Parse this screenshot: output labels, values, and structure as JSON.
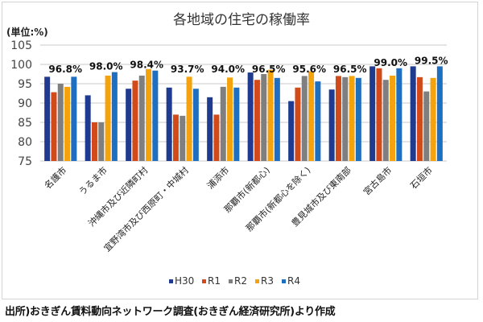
{
  "chart_data": {
    "type": "bar",
    "title": "各地域の住宅の稼働率",
    "unit_label": "(単位:%)",
    "xlabel": "",
    "ylabel": "(単位:%)",
    "ylim": [
      75,
      105
    ],
    "yticks": [
      75,
      80,
      85,
      90,
      95,
      100,
      105
    ],
    "grid": true,
    "legend": "bottom",
    "categories": [
      "名護市",
      "うるま市",
      "沖縄市及び近隣町村",
      "宜野湾市及び西原町・中城村",
      "浦添市",
      "那覇市(新都心)",
      "那覇市(新都心を除く)",
      "豊見城市及び東南部",
      "宮古島市",
      "石垣市"
    ],
    "series": [
      {
        "name": "H30",
        "color": "#1f3b8f",
        "values": [
          96.8,
          92.0,
          93.7,
          94.0,
          91.5,
          97.9,
          90.5,
          93.5,
          99.5,
          99.5
        ]
      },
      {
        "name": "R1",
        "color": "#d2491a",
        "values": [
          92.8,
          85.0,
          95.8,
          87.0,
          87.0,
          96.0,
          94.0,
          97.0,
          99.0,
          96.7
        ]
      },
      {
        "name": "R2",
        "color": "#7f7f7f",
        "values": [
          95.0,
          85.0,
          97.1,
          86.7,
          94.2,
          97.5,
          97.0,
          96.7,
          96.0,
          93.0
        ]
      },
      {
        "name": "R3",
        "color": "#f4a30c",
        "values": [
          94.2,
          97.1,
          98.8,
          96.8,
          96.6,
          98.6,
          98.2,
          97.0,
          97.1,
          96.5
        ]
      },
      {
        "name": "R4",
        "color": "#1f6fc0",
        "values": [
          96.8,
          98.0,
          98.4,
          93.7,
          94.0,
          96.5,
          95.6,
          96.5,
          99.0,
          99.5
        ]
      }
    ],
    "data_labels": [
      "96.8%",
      "98.0%",
      "98.4%",
      "93.7%",
      "94.0%",
      "96.5%",
      "95.6%",
      "96.5%",
      "99.0%",
      "99.5%"
    ]
  },
  "footer": {
    "source": "出所)おきぎん賃料動向ネットワーク調査(おきぎん経済研究所)より作成"
  }
}
